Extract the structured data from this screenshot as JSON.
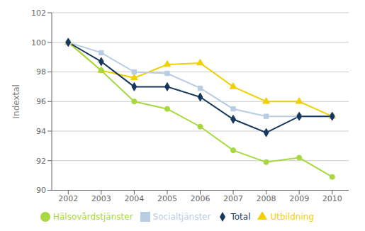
{
  "chart_data": {
    "type": "line",
    "x": [
      2002,
      2003,
      2004,
      2005,
      2006,
      2007,
      2008,
      2009,
      2010
    ],
    "series": [
      {
        "name": "Utbildning",
        "color": "#f0d000",
        "marker": "triangle",
        "values": [
          100.0,
          98.1,
          97.6,
          98.5,
          98.6,
          97.0,
          96.0,
          96.0,
          95.0
        ]
      },
      {
        "name": "Hälsovårdstjänster",
        "color": "#a8d840",
        "marker": "circle",
        "values": [
          100.0,
          98.1,
          96.0,
          95.5,
          94.3,
          92.7,
          91.9,
          92.2,
          90.9
        ]
      },
      {
        "name": "Socialtjänster",
        "color": "#b8cce4",
        "marker": "square",
        "values": [
          100.0,
          99.3,
          98.0,
          97.9,
          96.9,
          95.5,
          95.0,
          95.0,
          95.0
        ]
      },
      {
        "name": "Total",
        "color": "#17375e",
        "marker": "diamond",
        "values": [
          100.0,
          98.7,
          97.0,
          97.0,
          96.3,
          94.8,
          93.9,
          95.0,
          95.0
        ]
      }
    ],
    "ylabel": "Indextal",
    "xlim": [
      2001.5,
      2010.5
    ],
    "xticks": [
      2002,
      2003,
      2004,
      2005,
      2006,
      2007,
      2008,
      2009,
      2010
    ],
    "ylim": [
      90,
      102
    ],
    "yticks": [
      90,
      92,
      94,
      96,
      98,
      100,
      102
    ],
    "grid": true,
    "legend": "bottom"
  }
}
